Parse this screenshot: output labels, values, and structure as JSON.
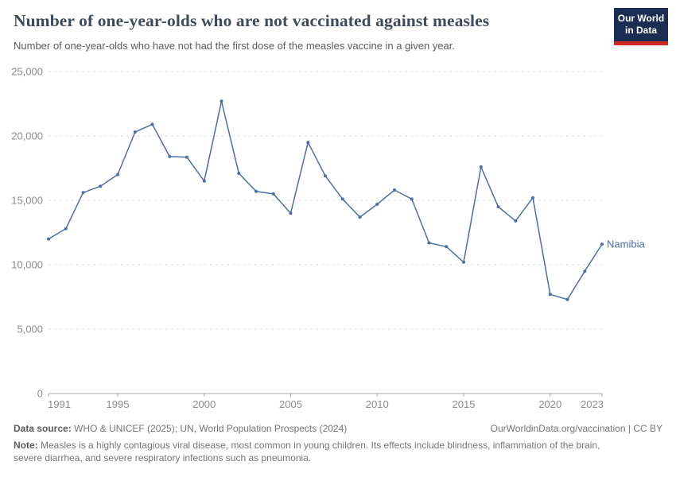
{
  "header": {
    "title": "Number of one-year-olds who are not vaccinated against measles",
    "subtitle": "Number of one-year-olds who have not had the first dose of the measles vaccine in a given year.",
    "logo": {
      "line1": "Our World",
      "line2": "in Data",
      "bg_color": "#1b2d52",
      "accent_color": "#cf2b22"
    }
  },
  "chart_data": {
    "type": "line",
    "title": "Number of one-year-olds who are not vaccinated against measles",
    "xlabel": "",
    "ylabel": "",
    "grid": "horizontal-dashed",
    "legend_position": "end-of-line-label",
    "xlim": [
      1991,
      2023
    ],
    "ylim": [
      0,
      25000
    ],
    "x_ticks": [
      1991,
      1995,
      2000,
      2005,
      2010,
      2015,
      2020,
      2023
    ],
    "y_ticks": [
      0,
      5000,
      10000,
      15000,
      20000,
      25000
    ],
    "y_tick_labels": [
      "0",
      "5,000",
      "10,000",
      "15,000",
      "20,000",
      "25,000"
    ],
    "series": [
      {
        "name": "Namibia",
        "color": "#4C6EA8",
        "x": [
          1991,
          1992,
          1993,
          1994,
          1995,
          1996,
          1997,
          1998,
          1999,
          2000,
          2001,
          2002,
          2003,
          2004,
          2005,
          2006,
          2007,
          2008,
          2009,
          2010,
          2011,
          2012,
          2013,
          2014,
          2015,
          2016,
          2017,
          2018,
          2019,
          2020,
          2021,
          2022,
          2023
        ],
        "values": [
          12000,
          12800,
          15600,
          16100,
          17000,
          20300,
          20900,
          18400,
          18350,
          16500,
          22700,
          17100,
          15700,
          15500,
          14000,
          19500,
          16900,
          15100,
          13700,
          14700,
          15800,
          15100,
          11700,
          11400,
          10200,
          17600,
          14500,
          13400,
          15200,
          7700,
          7300,
          9500,
          11600
        ]
      }
    ],
    "entity_label": "Namibia"
  },
  "footer": {
    "datasource_label": "Data source:",
    "datasource_text": " WHO & UNICEF (2025); UN, World Population Prospects (2024)",
    "rights_text": "OurWorldinData.org/vaccination | CC BY",
    "note_label": "Note:",
    "note_text": " Measles is a highly contagious viral disease, most common in young children. Its effects include blindness, inflammation of the brain, severe diarrhea, and severe respiratory infections such as pneumonia."
  },
  "colors": {
    "line": "#4C6EA8",
    "axis_label": "#8b8b8b",
    "gridline": "#dcdcdc",
    "baseline": "#a8a8a8",
    "title": "#3d4a5c",
    "subtitle": "#5b5b5b"
  }
}
